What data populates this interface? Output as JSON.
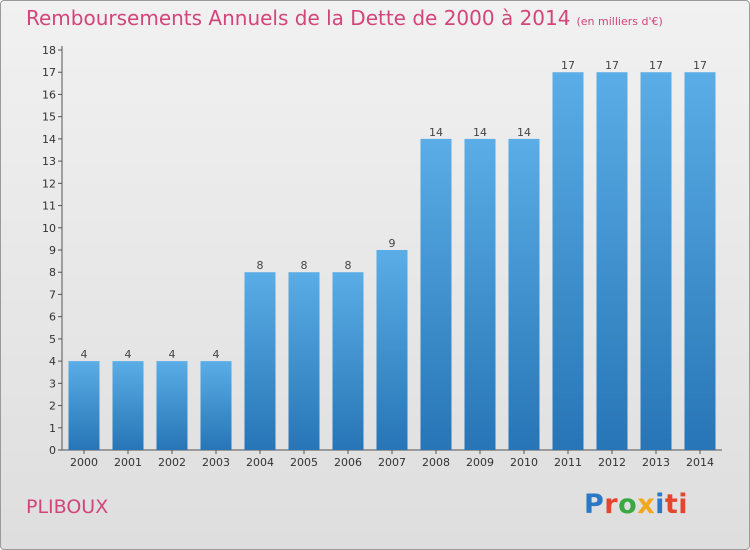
{
  "title": "Remboursements Annuels de la Dette de 2000 à 2014",
  "unit": "(en milliers d'€)",
  "commune": "PLIBOUX",
  "logo": [
    "P",
    "r",
    "o",
    "x",
    "i",
    "ti"
  ],
  "colors": {
    "bar_top": "#5aade6",
    "bar_bottom": "#2775b6",
    "title": "#d2447a"
  },
  "chart_data": {
    "type": "bar",
    "title": "Remboursements Annuels de la Dette de 2000 à 2014",
    "xlabel": "",
    "ylabel": "",
    "categories": [
      "2000",
      "2001",
      "2002",
      "2003",
      "2004",
      "2005",
      "2006",
      "2007",
      "2008",
      "2009",
      "2010",
      "2011",
      "2012",
      "2013",
      "2014"
    ],
    "values": [
      4,
      4,
      4,
      4,
      8,
      8,
      8,
      9,
      14,
      14,
      14,
      17,
      17,
      17,
      17
    ],
    "ylim": [
      0,
      18
    ],
    "yticks": [
      0,
      1,
      2,
      3,
      4,
      5,
      6,
      7,
      8,
      9,
      10,
      11,
      12,
      13,
      14,
      15,
      16,
      17,
      18
    ],
    "data_labels": true,
    "grid": false
  }
}
